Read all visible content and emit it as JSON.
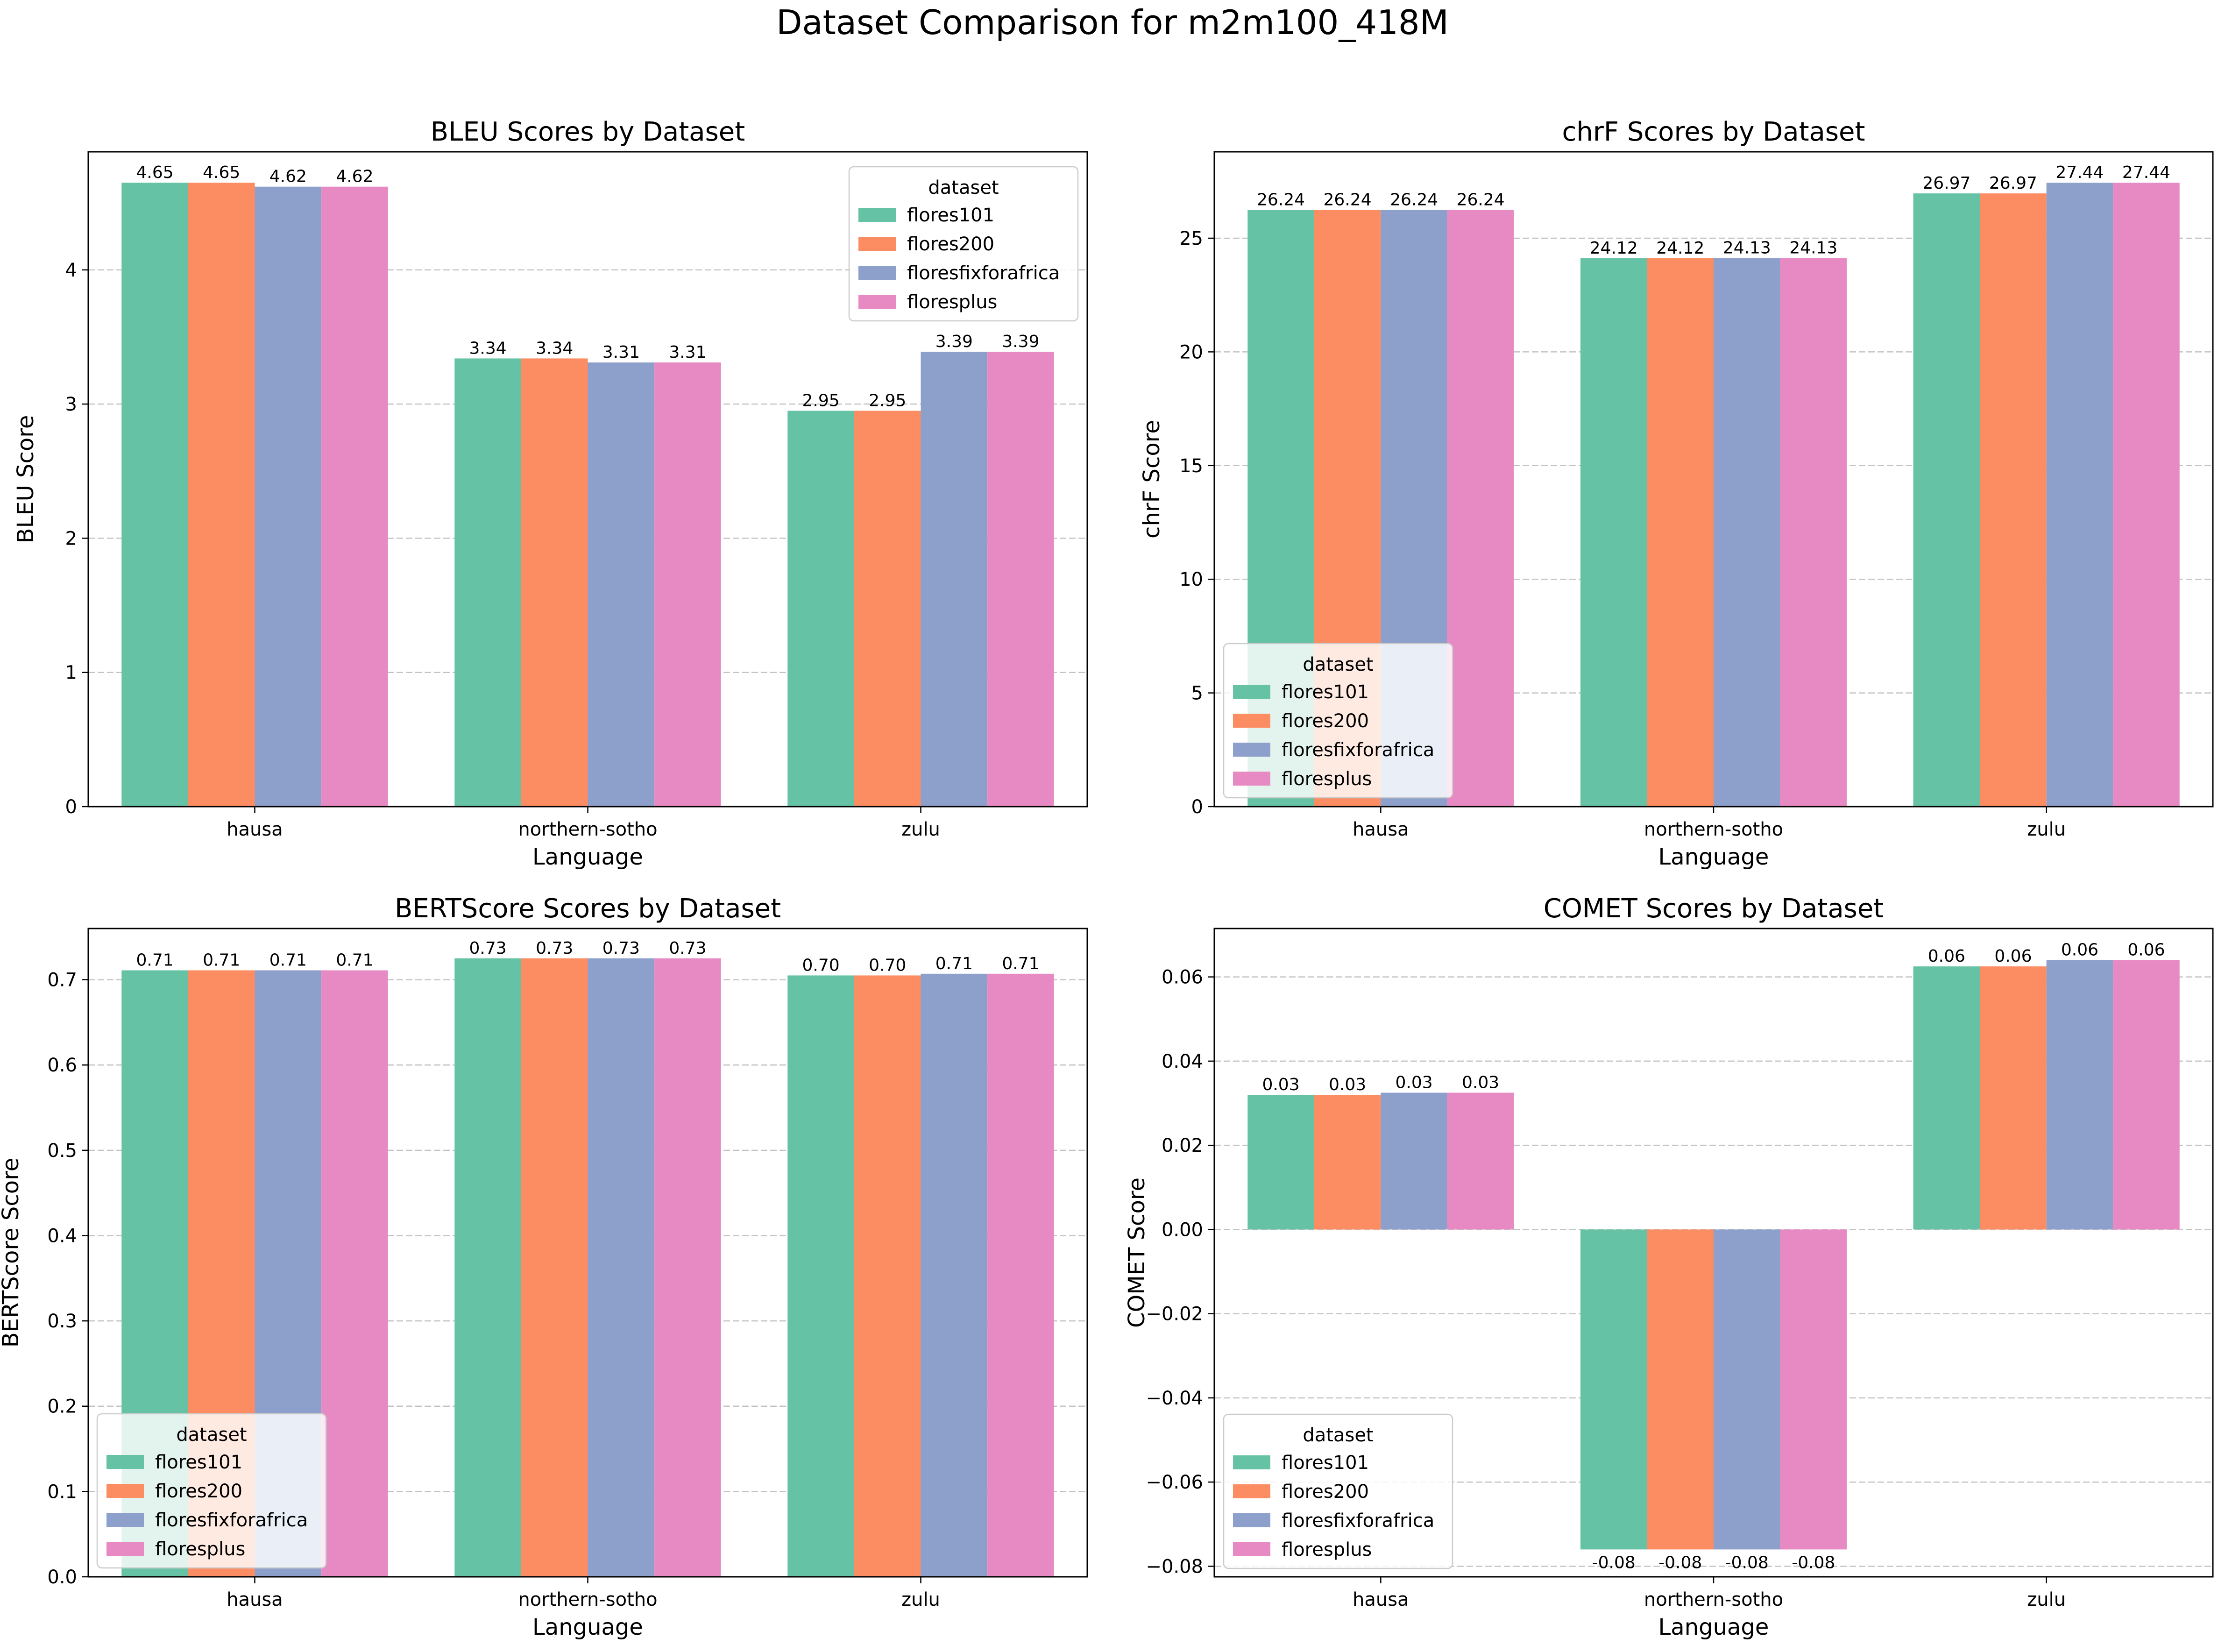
{
  "figure": {
    "title": "Dataset Comparison for m2m100_418M"
  },
  "colors": {
    "flores101": "#66c2a5",
    "flores200": "#fc8d62",
    "floresfixforafrica": "#8da0cb",
    "floresplus": "#e78ac3",
    "grid": "#b0b0b0"
  },
  "chart_data": [
    {
      "type": "bar",
      "title": "BLEU Scores by Dataset",
      "xlabel": "Language",
      "ylabel": "BLEU Score",
      "categories": [
        "hausa",
        "northern-sotho",
        "zulu"
      ],
      "ylim": [
        0,
        4.88
      ],
      "yticks": [
        0,
        1,
        2,
        3,
        4
      ],
      "ytick_labels": [
        "0",
        "1",
        "2",
        "3",
        "4"
      ],
      "grid": "y, dashed",
      "legend": {
        "title": "dataset",
        "position": "upper right"
      },
      "series": [
        {
          "name": "flores101",
          "values": [
            4.65,
            3.34,
            2.95
          ],
          "labels": [
            "4.65",
            "3.34",
            "2.95"
          ]
        },
        {
          "name": "flores200",
          "values": [
            4.65,
            3.34,
            2.95
          ],
          "labels": [
            "4.65",
            "3.34",
            "2.95"
          ]
        },
        {
          "name": "floresfixforafrica",
          "values": [
            4.62,
            3.31,
            3.39
          ],
          "labels": [
            "4.62",
            "3.31",
            "3.39"
          ]
        },
        {
          "name": "floresplus",
          "values": [
            4.62,
            3.31,
            3.39
          ],
          "labels": [
            "4.62",
            "3.31",
            "3.39"
          ]
        }
      ]
    },
    {
      "type": "bar",
      "title": "chrF Scores by Dataset",
      "xlabel": "Language",
      "ylabel": "chrF Score",
      "categories": [
        "hausa",
        "northern-sotho",
        "zulu"
      ],
      "ylim": [
        0,
        28.8
      ],
      "yticks": [
        0,
        5,
        10,
        15,
        20,
        25
      ],
      "ytick_labels": [
        "0",
        "5",
        "10",
        "15",
        "20",
        "25"
      ],
      "grid": "y, dashed",
      "legend": {
        "title": "dataset",
        "position": "lower left"
      },
      "series": [
        {
          "name": "flores101",
          "values": [
            26.24,
            24.12,
            26.97
          ],
          "labels": [
            "26.24",
            "24.12",
            "26.97"
          ]
        },
        {
          "name": "flores200",
          "values": [
            26.24,
            24.12,
            26.97
          ],
          "labels": [
            "26.24",
            "24.12",
            "26.97"
          ]
        },
        {
          "name": "floresfixforafrica",
          "values": [
            26.24,
            24.13,
            27.44
          ],
          "labels": [
            "26.24",
            "24.13",
            "27.44"
          ]
        },
        {
          "name": "floresplus",
          "values": [
            26.24,
            24.13,
            27.44
          ],
          "labels": [
            "26.24",
            "24.13",
            "27.44"
          ]
        }
      ]
    },
    {
      "type": "bar",
      "title": "BERTScore Scores by Dataset",
      "xlabel": "Language",
      "ylabel": "BERTScore Score",
      "categories": [
        "hausa",
        "northern-sotho",
        "zulu"
      ],
      "ylim": [
        0,
        0.76
      ],
      "yticks": [
        0,
        0.1,
        0.2,
        0.3,
        0.4,
        0.5,
        0.6,
        0.7
      ],
      "ytick_labels": [
        "0.0",
        "0.1",
        "0.2",
        "0.3",
        "0.4",
        "0.5",
        "0.6",
        "0.7"
      ],
      "grid": "y, dashed",
      "legend": {
        "title": "dataset",
        "position": "lower left"
      },
      "series": [
        {
          "name": "flores101",
          "values": [
            0.711,
            0.725,
            0.705
          ],
          "labels": [
            "0.71",
            "0.73",
            "0.70"
          ]
        },
        {
          "name": "flores200",
          "values": [
            0.711,
            0.725,
            0.705
          ],
          "labels": [
            "0.71",
            "0.73",
            "0.70"
          ]
        },
        {
          "name": "floresfixforafrica",
          "values": [
            0.711,
            0.725,
            0.707
          ],
          "labels": [
            "0.71",
            "0.73",
            "0.71"
          ]
        },
        {
          "name": "floresplus",
          "values": [
            0.711,
            0.725,
            0.707
          ],
          "labels": [
            "0.71",
            "0.73",
            "0.71"
          ]
        }
      ]
    },
    {
      "type": "bar",
      "title": "COMET Scores by Dataset",
      "xlabel": "Language",
      "ylabel": "COMET Score",
      "categories": [
        "hausa",
        "northern-sotho",
        "zulu"
      ],
      "ylim": [
        -0.0825,
        0.0715
      ],
      "yticks": [
        -0.08,
        -0.06,
        -0.04,
        -0.02,
        0.0,
        0.02,
        0.04,
        0.06
      ],
      "ytick_labels": [
        "−0.08",
        "−0.06",
        "−0.04",
        "−0.02",
        "0.00",
        "0.02",
        "0.04",
        "0.06"
      ],
      "grid": "y, dashed",
      "legend": {
        "title": "dataset",
        "position": "lower left"
      },
      "series": [
        {
          "name": "flores101",
          "values": [
            0.032,
            -0.076,
            0.0625
          ],
          "labels": [
            "0.03",
            "-0.08",
            "0.06"
          ]
        },
        {
          "name": "flores200",
          "values": [
            0.032,
            -0.076,
            0.0625
          ],
          "labels": [
            "0.03",
            "-0.08",
            "0.06"
          ]
        },
        {
          "name": "floresfixforafrica",
          "values": [
            0.0325,
            -0.076,
            0.064
          ],
          "labels": [
            "0.03",
            "-0.08",
            "0.06"
          ]
        },
        {
          "name": "floresplus",
          "values": [
            0.0325,
            -0.076,
            0.064
          ],
          "labels": [
            "0.03",
            "-0.08",
            "0.06"
          ]
        }
      ]
    }
  ]
}
